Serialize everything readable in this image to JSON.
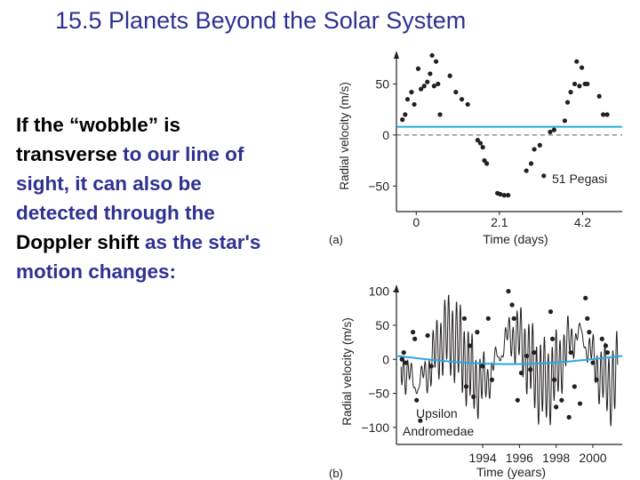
{
  "title": "15.5 Planets Beyond the Solar System",
  "body": {
    "l1a": "If the “wobble” is",
    "l2a": "transverse",
    "l2b": " to our line of",
    "l3a": "sight, it can also be",
    "l4a": "detected through the",
    "l5a": "Doppler shift",
    "l5b": " as the star's",
    "l6a": "motion changes:"
  },
  "colors": {
    "title": "#2e3192",
    "fit_line": "#29a8e0",
    "points": "#231f20"
  },
  "chart_data": [
    {
      "type": "scatter",
      "panel_label": "(a)",
      "xlabel": "Time (days)",
      "ylabel": "Radial velocity (m/s)",
      "annotation": "51 Pegasi",
      "xticks": [
        "0",
        "2.1",
        "4.2"
      ],
      "xtick_values": [
        0,
        2.1,
        4.2
      ],
      "yticks": [
        "50",
        "0",
        "−50"
      ],
      "ytick_values": [
        50,
        0,
        -50
      ],
      "xlim": [
        -0.5,
        5.2
      ],
      "ylim": [
        -75,
        80
      ],
      "zero_line": "dashed",
      "fit_line_value": 8,
      "points": [
        [
          -0.35,
          15
        ],
        [
          -0.28,
          20
        ],
        [
          -0.22,
          35
        ],
        [
          -0.12,
          42
        ],
        [
          -0.05,
          30
        ],
        [
          0.05,
          65
        ],
        [
          0.12,
          45
        ],
        [
          0.2,
          48
        ],
        [
          0.28,
          52
        ],
        [
          0.35,
          60
        ],
        [
          0.4,
          78
        ],
        [
          0.45,
          48
        ],
        [
          0.5,
          72
        ],
        [
          0.55,
          50
        ],
        [
          0.6,
          20
        ],
        [
          0.85,
          58
        ],
        [
          1.0,
          42
        ],
        [
          1.15,
          35
        ],
        [
          1.3,
          30
        ],
        [
          1.55,
          -5
        ],
        [
          1.62,
          -8
        ],
        [
          1.68,
          -12
        ],
        [
          1.72,
          -25
        ],
        [
          1.78,
          -28
        ],
        [
          2.05,
          -57
        ],
        [
          2.12,
          -58
        ],
        [
          2.22,
          -59
        ],
        [
          2.32,
          -59
        ],
        [
          2.78,
          -35
        ],
        [
          2.9,
          -28
        ],
        [
          2.98,
          -14
        ],
        [
          3.12,
          -10
        ],
        [
          3.22,
          -40
        ],
        [
          3.38,
          3
        ],
        [
          3.48,
          5
        ],
        [
          3.75,
          14
        ],
        [
          3.82,
          32
        ],
        [
          3.9,
          42
        ],
        [
          4.0,
          50
        ],
        [
          4.05,
          72
        ],
        [
          4.12,
          48
        ],
        [
          4.18,
          66
        ],
        [
          4.26,
          50
        ],
        [
          4.32,
          50
        ],
        [
          4.62,
          38
        ],
        [
          4.72,
          20
        ],
        [
          4.82,
          20
        ]
      ]
    },
    {
      "type": "scatter",
      "panel_label": "(b)",
      "xlabel": "Time (years)",
      "ylabel": "Radial velocity (m/s)",
      "annotation": [
        "Upsilon",
        "Andromedae"
      ],
      "xticks": [
        "1994",
        "1996",
        "1998",
        "2000"
      ],
      "xtick_values": [
        1994,
        1996,
        1998,
        2000
      ],
      "yticks": [
        "100",
        "50",
        "0",
        "−50",
        "−100"
      ],
      "ytick_values": [
        100,
        50,
        0,
        -50,
        -100
      ],
      "xlim": [
        1989.3,
        2001.6
      ],
      "ylim": [
        -125,
        110
      ],
      "points": [
        [
          1989.6,
          0
        ],
        [
          1989.7,
          10
        ],
        [
          1989.8,
          -5
        ],
        [
          1990.2,
          40
        ],
        [
          1990.3,
          30
        ],
        [
          1990.4,
          -60
        ],
        [
          1990.6,
          -90
        ],
        [
          1991.0,
          35
        ],
        [
          1991.2,
          -10
        ],
        [
          1993.0,
          60
        ],
        [
          1993.1,
          -40
        ],
        [
          1993.3,
          20
        ],
        [
          1993.5,
          -55
        ],
        [
          1993.7,
          40
        ],
        [
          1994.0,
          -10
        ],
        [
          1994.3,
          60
        ],
        [
          1994.5,
          -30
        ],
        [
          1995.4,
          100
        ],
        [
          1995.6,
          80
        ],
        [
          1995.7,
          60
        ],
        [
          1995.9,
          -60
        ],
        [
          1996.1,
          -20
        ],
        [
          1996.4,
          5
        ],
        [
          1996.6,
          -15
        ],
        [
          1996.8,
          10
        ],
        [
          1997.7,
          70
        ],
        [
          1997.8,
          30
        ],
        [
          1997.9,
          -30
        ],
        [
          1998.0,
          -70
        ],
        [
          1998.3,
          -60
        ],
        [
          1998.7,
          -85
        ],
        [
          1998.8,
          10
        ],
        [
          1999.0,
          -40
        ],
        [
          1999.3,
          -65
        ],
        [
          1999.6,
          90
        ],
        [
          1999.7,
          60
        ],
        [
          1999.8,
          40
        ],
        [
          2000.0,
          -5
        ],
        [
          2000.2,
          -30
        ],
        [
          2000.5,
          30
        ],
        [
          2000.7,
          20
        ],
        [
          2000.8,
          10
        ]
      ]
    }
  ]
}
